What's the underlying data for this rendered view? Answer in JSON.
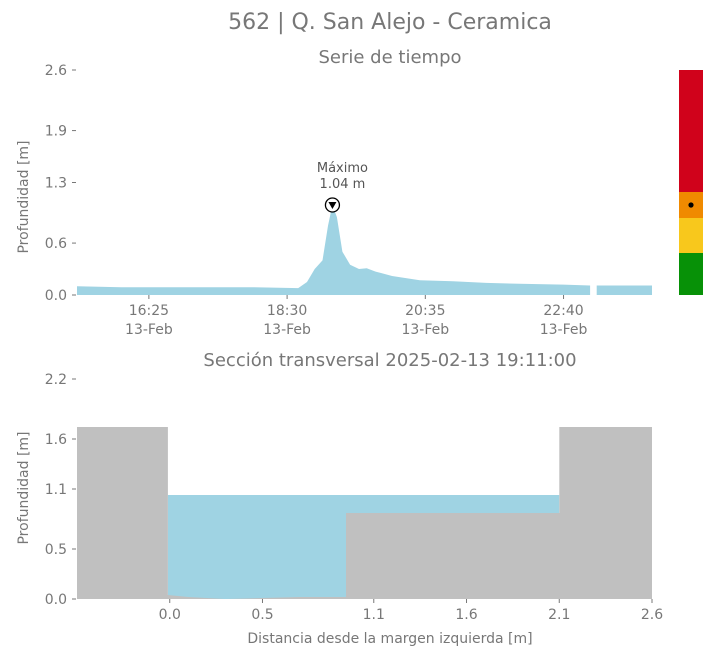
{
  "figure": {
    "title": "562 | Q. San Alejo - Ceramica"
  },
  "chart_data": [
    {
      "type": "area",
      "title": "Serie de tiempo",
      "ylabel": "Profundidad [m]",
      "xlabel": "",
      "ylim": [
        0,
        2.6
      ],
      "yticks": [
        "0.0",
        "0.6",
        "1.3",
        "1.9",
        "2.6"
      ],
      "yticks_values": [
        0,
        0.6,
        1.3,
        1.9,
        2.6
      ],
      "xlim": [
        "2025-02-13 15:20",
        "2025-02-14 00:00"
      ],
      "xticks": [
        {
          "time": "2025-02-13 16:25",
          "label": "16:25",
          "date": "13-Feb"
        },
        {
          "time": "2025-02-13 18:30",
          "label": "18:30",
          "date": "13-Feb"
        },
        {
          "time": "2025-02-13 20:35",
          "label": "20:35",
          "date": "13-Feb"
        },
        {
          "time": "2025-02-13 22:40",
          "label": "22:40",
          "date": "13-Feb"
        }
      ],
      "fill_color": "#9fd3e3",
      "series": [
        {
          "segments": [
            [
              [
                "2025-02-13 15:20",
                0.1
              ],
              [
                "2025-02-13 16:00",
                0.09
              ],
              [
                "2025-02-13 17:00",
                0.09
              ],
              [
                "2025-02-13 18:00",
                0.09
              ],
              [
                "2025-02-13 18:40",
                0.08
              ],
              [
                "2025-02-13 18:48",
                0.15
              ],
              [
                "2025-02-13 18:55",
                0.3
              ],
              [
                "2025-02-13 19:02",
                0.4
              ],
              [
                "2025-02-13 19:07",
                0.8
              ],
              [
                "2025-02-13 19:11",
                1.04
              ],
              [
                "2025-02-13 19:15",
                0.9
              ],
              [
                "2025-02-13 19:20",
                0.5
              ],
              [
                "2025-02-13 19:27",
                0.35
              ],
              [
                "2025-02-13 19:35",
                0.3
              ],
              [
                "2025-02-13 19:42",
                0.31
              ],
              [
                "2025-02-13 19:50",
                0.27
              ],
              [
                "2025-02-13 20:05",
                0.22
              ],
              [
                "2025-02-13 20:30",
                0.17
              ],
              [
                "2025-02-13 21:00",
                0.16
              ],
              [
                "2025-02-13 21:30",
                0.14
              ],
              [
                "2025-02-13 22:00",
                0.13
              ],
              [
                "2025-02-13 22:40",
                0.12
              ],
              [
                "2025-02-13 23:04",
                0.11
              ]
            ],
            [
              [
                "2025-02-13 23:10",
                0.11
              ],
              [
                "2025-02-13 23:30",
                0.11
              ],
              [
                "2025-02-14 00:00",
                0.11
              ]
            ]
          ]
        }
      ],
      "annotation": {
        "label": "Máximo",
        "value_text": "1.04 m",
        "time": "2025-02-13 19:11",
        "value": 1.04
      }
    },
    {
      "type": "area",
      "title": "Sección transversal 2025-02-13 19:11:00",
      "xlabel": "Distancia desde la margen izquierda [m]",
      "ylabel": "Profundidad [m]",
      "xlim": [
        -0.5,
        2.6
      ],
      "ylim": [
        0,
        2.2
      ],
      "xticks": [
        "0.0",
        "0.5",
        "1.1",
        "1.6",
        "2.1",
        "2.6"
      ],
      "xticks_values": [
        0.0,
        0.5,
        1.1,
        1.6,
        2.1,
        2.6
      ],
      "yticks": [
        "0.0",
        "0.5",
        "1.1",
        "1.6",
        "2.2"
      ],
      "yticks_values": [
        0.0,
        0.5,
        1.1,
        1.6,
        2.2
      ],
      "water_level": 1.04,
      "water_color": "#9fd3e3",
      "ground_color": "#c0c0c0",
      "ground_profile": [
        [
          -0.5,
          1.72
        ],
        [
          -0.01,
          1.72
        ],
        [
          -0.01,
          0.04
        ],
        [
          0.1,
          0.02
        ],
        [
          0.3,
          0.0
        ],
        [
          0.5,
          0.01
        ],
        [
          0.7,
          0.02
        ],
        [
          0.95,
          0.02
        ],
        [
          0.95,
          0.86
        ],
        [
          2.1,
          0.86
        ],
        [
          2.1,
          1.72
        ],
        [
          2.6,
          1.72
        ]
      ]
    }
  ],
  "risk_bar": {
    "colors": [
      "#d0021b",
      "#f08a00",
      "#f8c81c",
      "#079107"
    ],
    "levels": [
      "rojo",
      "naranja",
      "amarillo",
      "verde"
    ],
    "current_level": "naranja"
  }
}
